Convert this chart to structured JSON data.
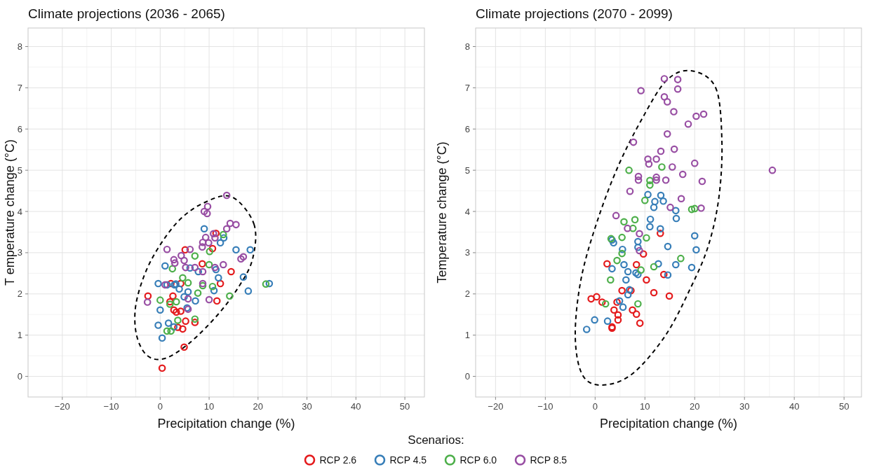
{
  "chart_data": [
    {
      "type": "scatter",
      "title": "Climate projections (2036 - 2065)",
      "xlabel": "Precipitation change (%)",
      "ylabel": "T emperature change (°C)",
      "xlim": [
        -27,
        54
      ],
      "ylim": [
        -0.5,
        8.45
      ],
      "xticks": [
        -20,
        -10,
        0,
        10,
        20,
        30,
        40,
        50
      ],
      "yticks": [
        0,
        1,
        2,
        3,
        4,
        5,
        6,
        7,
        8
      ],
      "grid": true,
      "marker": "circle",
      "legend": "bottom",
      "legend_title": "Scenarios:",
      "series": [
        {
          "name": "RCP 2.6",
          "color": "#e41a1c",
          "x": [
            -2.5,
            2.2,
            4.2,
            12.3,
            2.6,
            2.0,
            11.6,
            2.8,
            3.3,
            4.2,
            5.2,
            7.1,
            3.6,
            4.6,
            4.9,
            0.4,
            5.1,
            11.4,
            10.7,
            8.6,
            14.5
          ],
          "values": [
            1.95,
            2.25,
            2.25,
            2.25,
            1.95,
            1.81,
            1.83,
            1.61,
            1.56,
            1.58,
            1.34,
            1.31,
            1.19,
            1.15,
            0.71,
            0.2,
            3.07,
            3.47,
            3.1,
            2.73,
            2.54
          ]
        },
        {
          "name": "RCP 4.5",
          "color": "#377eb8",
          "x": [
            9.0,
            13.0,
            12.3,
            15.5,
            18.4,
            1.0,
            6.1,
            11.4,
            17.0,
            -0.4,
            3.2,
            7.8,
            11.9,
            22.3,
            1.4,
            2.9,
            3.9,
            5.7,
            4.9,
            11.0,
            18.0,
            7.2,
            0.0,
            5.5,
            -0.4,
            1.7,
            2.8,
            0.4
          ],
          "values": [
            3.58,
            3.36,
            3.24,
            3.07,
            3.07,
            2.68,
            2.63,
            2.59,
            2.41,
            2.25,
            2.24,
            2.54,
            2.39,
            2.25,
            2.22,
            2.22,
            2.12,
            2.05,
            1.93,
            2.08,
            2.07,
            1.83,
            1.61,
            1.66,
            1.24,
            1.29,
            1.2,
            0.93
          ]
        },
        {
          "name": "RCP 6.0",
          "color": "#4daf4a",
          "x": [
            12.9,
            10.1,
            7.1,
            10.0,
            2.5,
            4.6,
            21.6,
            5.7,
            8.7,
            10.7,
            7.7,
            14.2,
            0.0,
            3.3,
            2.0,
            3.6,
            7.1,
            1.4,
            2.2
          ],
          "values": [
            3.44,
            3.03,
            2.92,
            2.71,
            2.61,
            2.39,
            2.24,
            2.27,
            2.2,
            2.18,
            2.02,
            1.95,
            1.85,
            1.81,
            1.75,
            1.36,
            1.39,
            1.1,
            1.1
          ]
        },
        {
          "name": "RCP 8.5",
          "color": "#984ea3",
          "x": [
            13.6,
            9.7,
            9.0,
            9.6,
            14.3,
            15.5,
            13.6,
            10.9,
            9.3,
            11.2,
            8.7,
            9.9,
            8.6,
            1.4,
            6.1,
            17.0,
            16.5,
            4.3,
            2.8,
            3.0,
            4.9,
            5.2,
            7.1,
            11.2,
            12.9,
            8.7,
            1.0,
            8.7,
            -2.6,
            5.7,
            10.0,
            5.7
          ],
          "values": [
            4.39,
            4.12,
            4.0,
            3.95,
            3.71,
            3.68,
            3.58,
            3.46,
            3.37,
            3.36,
            3.25,
            3.24,
            3.14,
            3.08,
            3.08,
            2.9,
            2.85,
            2.93,
            2.83,
            2.75,
            2.81,
            2.64,
            2.64,
            2.64,
            2.71,
            2.54,
            2.22,
            2.25,
            1.8,
            1.88,
            1.86,
            1.63
          ]
        }
      ]
    },
    {
      "type": "scatter",
      "title": "Climate projections (2070 - 2099)",
      "xlabel": "Precipitation change (%)",
      "ylabel": "Temperature change (°C)",
      "xlim": [
        -24,
        53.5
      ],
      "ylim": [
        -0.5,
        8.45
      ],
      "xticks": [
        -20,
        -10,
        0,
        10,
        20,
        30,
        40,
        50
      ],
      "yticks": [
        0,
        1,
        2,
        3,
        4,
        5,
        6,
        7,
        8
      ],
      "grid": true,
      "marker": "circle",
      "legend": "bottom",
      "series": [
        {
          "name": "RCP 2.6",
          "color": "#e41a1c",
          "x": [
            13.1,
            9.7,
            2.4,
            8.3,
            13.8,
            10.3,
            5.4,
            7.2,
            11.8,
            14.9,
            -0.8,
            0.3,
            1.4,
            4.4,
            3.8,
            7.5,
            4.6,
            8.3,
            4.6,
            9.0,
            3.4,
            3.4
          ],
          "values": [
            3.47,
            2.97,
            2.73,
            2.71,
            2.47,
            2.34,
            2.08,
            2.08,
            2.03,
            1.95,
            1.88,
            1.93,
            1.8,
            1.8,
            1.61,
            1.61,
            1.49,
            1.51,
            1.37,
            1.29,
            1.2,
            1.17
          ]
        },
        {
          "name": "RCP 4.5",
          "color": "#377eb8",
          "x": [
            10.6,
            13.2,
            12.0,
            13.7,
            11.8,
            16.2,
            16.3,
            11.1,
            11.0,
            13.1,
            20.0,
            3.4,
            3.7,
            8.6,
            8.6,
            5.5,
            14.6,
            20.3,
            5.8,
            12.7,
            16.2,
            3.4,
            6.6,
            8.2,
            8.6,
            19.4,
            14.6,
            6.2,
            6.9,
            6.6,
            4.9,
            5.6,
            -0.1,
            2.5,
            -1.7
          ],
          "values": [
            4.41,
            4.39,
            4.24,
            4.25,
            4.1,
            4.02,
            3.83,
            3.81,
            3.63,
            3.58,
            3.41,
            3.31,
            3.24,
            3.27,
            3.13,
            3.08,
            3.15,
            3.07,
            2.71,
            2.73,
            2.71,
            2.61,
            2.54,
            2.51,
            2.47,
            2.64,
            2.46,
            2.34,
            2.1,
            1.98,
            1.83,
            1.68,
            1.37,
            1.34,
            1.14
          ]
        },
        {
          "name": "RCP 6.0",
          "color": "#4daf4a",
          "x": [
            6.8,
            13.4,
            11.0,
            11.0,
            10.0,
            19.4,
            20.0,
            5.8,
            8.0,
            7.6,
            5.4,
            3.2,
            10.3,
            5.4,
            4.4,
            17.2,
            11.8,
            9.2,
            3.1,
            2.1,
            8.6
          ],
          "values": [
            5.0,
            5.08,
            4.75,
            4.64,
            4.27,
            4.05,
            4.07,
            3.75,
            3.8,
            3.59,
            3.37,
            3.34,
            3.36,
            2.98,
            2.81,
            2.86,
            2.66,
            2.58,
            2.34,
            1.76,
            1.76
          ]
        },
        {
          "name": "RCP 8.5",
          "color": "#984ea3",
          "x": [
            13.9,
            16.6,
            9.2,
            16.6,
            13.9,
            14.5,
            15.8,
            20.3,
            21.8,
            18.7,
            14.5,
            7.7,
            13.2,
            15.9,
            10.6,
            12.3,
            10.8,
            15.5,
            20.0,
            17.6,
            8.7,
            8.7,
            12.3,
            12.3,
            14.2,
            21.5,
            35.6,
            7.0,
            17.3,
            15.1,
            21.3,
            4.2,
            6.5,
            8.9,
            8.9
          ],
          "values": [
            7.22,
            7.2,
            6.93,
            6.97,
            6.78,
            6.66,
            6.42,
            6.31,
            6.36,
            6.12,
            5.88,
            5.68,
            5.46,
            5.51,
            5.27,
            5.27,
            5.15,
            5.08,
            5.17,
            4.9,
            4.85,
            4.76,
            4.83,
            4.76,
            4.76,
            4.73,
            5.0,
            4.49,
            4.31,
            4.1,
            4.08,
            3.9,
            3.59,
            3.46,
            3.05
          ]
        }
      ]
    }
  ]
}
